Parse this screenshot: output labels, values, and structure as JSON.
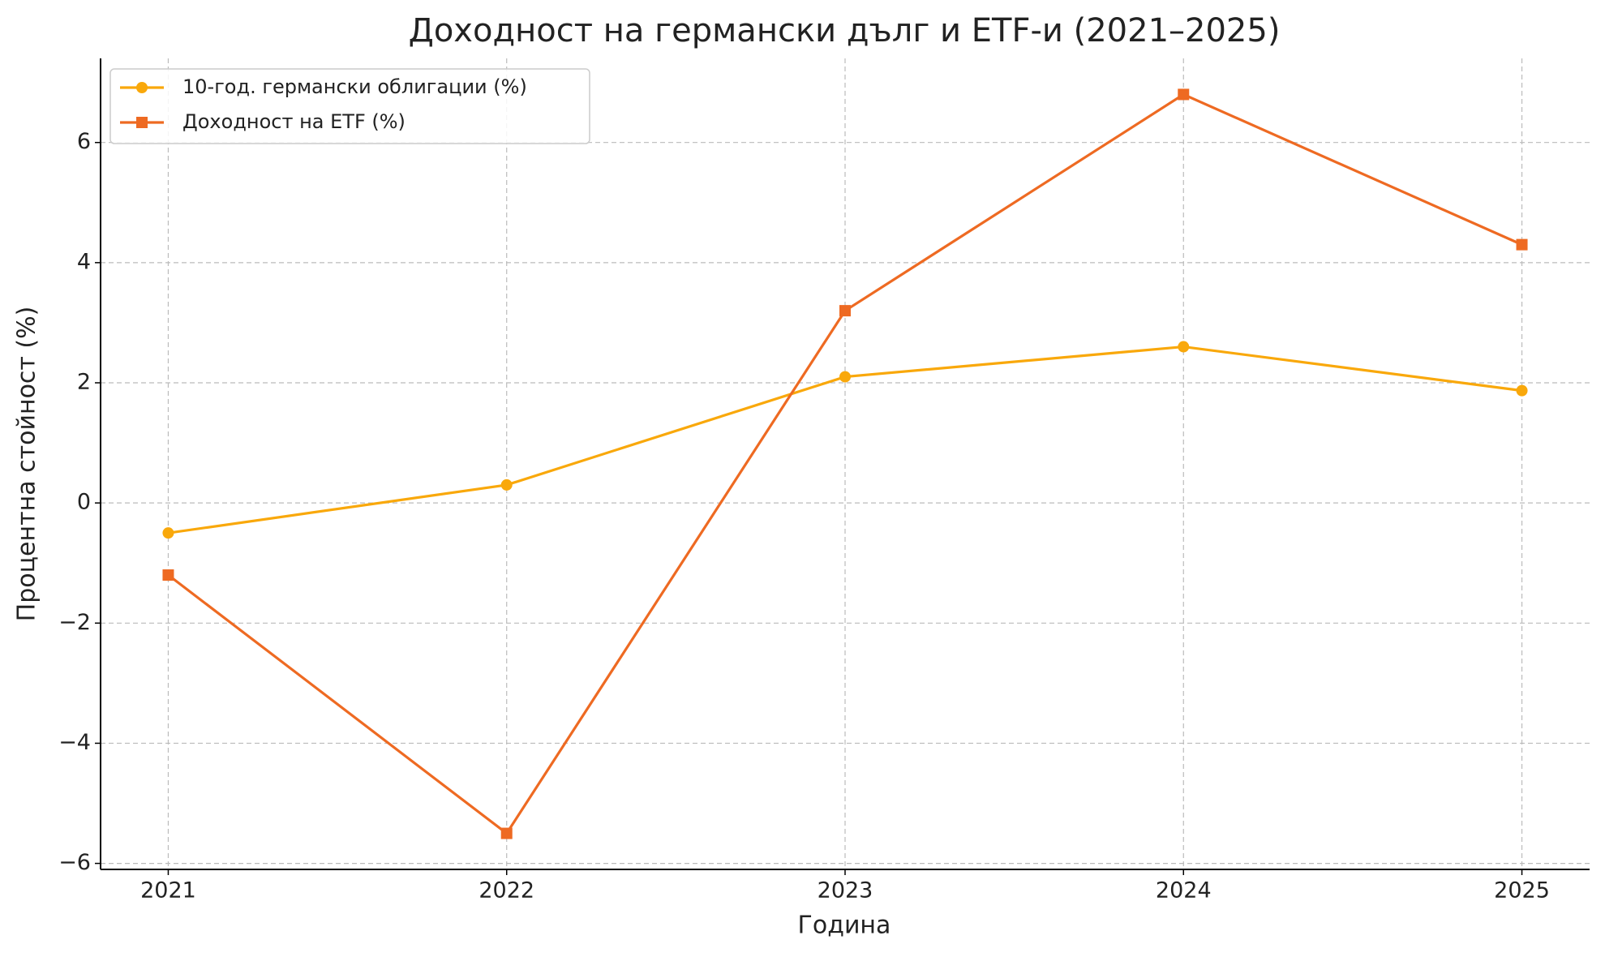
{
  "chart_data": {
    "type": "line",
    "title": "Доходност на германски дълг и ETF-и (2021–2025)",
    "xlabel": "Година",
    "ylabel": "Процентна стойност (%)",
    "x": [
      2021,
      2022,
      2023,
      2024,
      2025
    ],
    "series": [
      {
        "name": "10-год. германски облигации (%)",
        "color": "#f9a80b",
        "marker": "circle",
        "values": [
          -0.5,
          0.3,
          2.1,
          2.6,
          1.87
        ]
      },
      {
        "name": "Доходност на ETF (%)",
        "color": "#ee6a22",
        "marker": "square",
        "values": [
          -1.2,
          -5.5,
          3.2,
          6.8,
          4.3
        ]
      }
    ],
    "xlim": [
      2020.8,
      2025.2
    ],
    "xticks": [
      2021,
      2022,
      2023,
      2024,
      2025
    ],
    "ylim": [
      -6.1,
      7.4
    ],
    "yticks": [
      {
        "value": -6,
        "label": "−6"
      },
      {
        "value": -4,
        "label": "−4"
      },
      {
        "value": -2,
        "label": "−2"
      },
      0,
      2,
      4,
      6
    ],
    "grid": true,
    "legend": "upper left"
  }
}
